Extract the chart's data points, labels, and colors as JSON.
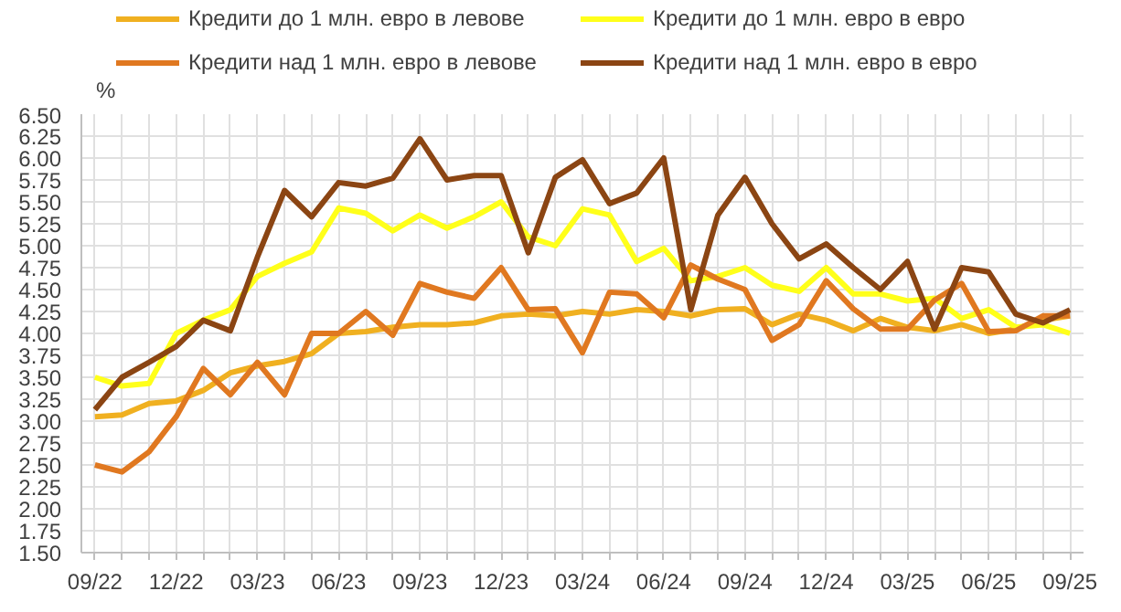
{
  "chart_data": {
    "type": "line",
    "ylabel": "%",
    "legend": "top",
    "grid": true,
    "marker": "none",
    "line_style": "solid",
    "categories": [
      "09/22",
      null,
      null,
      "12/22",
      null,
      null,
      "03/23",
      null,
      null,
      "06/23",
      null,
      null,
      "09/23",
      null,
      null,
      "12/23",
      null,
      null,
      "03/24",
      null,
      null,
      "06/24",
      null,
      null,
      "09/24",
      null,
      null,
      "12/24",
      null,
      null,
      "03/25",
      null,
      null,
      "06/25",
      null,
      null,
      "09/25"
    ],
    "ylim": [
      1.5,
      6.5
    ],
    "yticks": [
      {
        "value": 1.5,
        "label": "1.50"
      },
      {
        "value": 1.75,
        "label": "1.75"
      },
      {
        "value": 2.0,
        "label": "2.00"
      },
      {
        "value": 2.25,
        "label": "2.25"
      },
      {
        "value": 2.5,
        "label": "2.50"
      },
      {
        "value": 2.75,
        "label": "2.75"
      },
      {
        "value": 3.0,
        "label": "3.00"
      },
      {
        "value": 3.25,
        "label": "3.25"
      },
      {
        "value": 3.5,
        "label": "3.50"
      },
      {
        "value": 3.75,
        "label": "3.75"
      },
      {
        "value": 4.0,
        "label": "4.00"
      },
      {
        "value": 4.25,
        "label": "4.25"
      },
      {
        "value": 4.5,
        "label": "4.50"
      },
      {
        "value": 4.75,
        "label": "4.75"
      },
      {
        "value": 5.0,
        "label": "5.00"
      },
      {
        "value": 5.25,
        "label": "5.25"
      },
      {
        "value": 5.5,
        "label": "5.50"
      },
      {
        "value": 5.75,
        "label": "5.75"
      },
      {
        "value": 6.0,
        "label": "6.00"
      },
      {
        "value": 6.25,
        "label": "6.25"
      },
      {
        "value": 6.5,
        "label": "6.50"
      }
    ],
    "series": [
      {
        "name": "Кредити до 1 млн. евро в левове",
        "color": "#f0b020",
        "values": [
          3.05,
          3.07,
          3.2,
          3.23,
          3.35,
          3.55,
          3.63,
          3.68,
          3.77,
          4.0,
          4.02,
          4.07,
          4.1,
          4.1,
          4.12,
          4.2,
          4.22,
          4.2,
          4.25,
          4.22,
          4.27,
          4.25,
          4.2,
          4.27,
          4.28,
          4.1,
          4.22,
          4.15,
          4.03,
          4.17,
          4.07,
          4.03,
          4.1,
          4.0,
          4.05,
          4.15,
          4.2
        ]
      },
      {
        "name": "Кредити до 1 млн. евро в евро",
        "color": "#ffff1a",
        "values": [
          3.5,
          3.4,
          3.43,
          4.0,
          4.15,
          4.27,
          4.65,
          4.8,
          4.93,
          5.43,
          5.37,
          5.17,
          5.35,
          5.2,
          5.33,
          5.5,
          5.1,
          5.0,
          5.42,
          5.35,
          4.82,
          4.97,
          4.6,
          4.65,
          4.75,
          4.55,
          4.48,
          4.75,
          4.45,
          4.45,
          4.37,
          4.4,
          4.17,
          4.27,
          4.07,
          4.1,
          4.0
        ]
      },
      {
        "name": "Кредити над 1 млн. евро в левове",
        "color": "#e07820",
        "values": [
          2.5,
          2.42,
          2.65,
          3.05,
          3.6,
          3.3,
          3.67,
          3.3,
          4.0,
          4.0,
          4.25,
          3.98,
          4.57,
          4.47,
          4.4,
          4.75,
          4.27,
          4.28,
          3.78,
          4.47,
          4.45,
          4.18,
          4.78,
          4.62,
          4.5,
          3.92,
          4.1,
          4.6,
          4.28,
          4.05,
          4.05,
          4.38,
          4.57,
          4.02,
          4.03,
          4.2,
          4.2
        ]
      },
      {
        "name": "Кредити над 1 млн. евро в евро",
        "color": "#8b4513",
        "values": [
          3.13,
          3.5,
          3.67,
          3.85,
          4.15,
          4.03,
          4.87,
          5.63,
          5.33,
          5.72,
          5.68,
          5.77,
          6.22,
          5.75,
          5.8,
          5.8,
          4.92,
          5.78,
          5.98,
          5.48,
          5.6,
          6.0,
          4.27,
          5.35,
          5.78,
          5.25,
          4.85,
          5.02,
          4.75,
          4.5,
          4.82,
          4.05,
          4.75,
          4.7,
          4.22,
          4.12,
          4.27
        ]
      }
    ]
  }
}
